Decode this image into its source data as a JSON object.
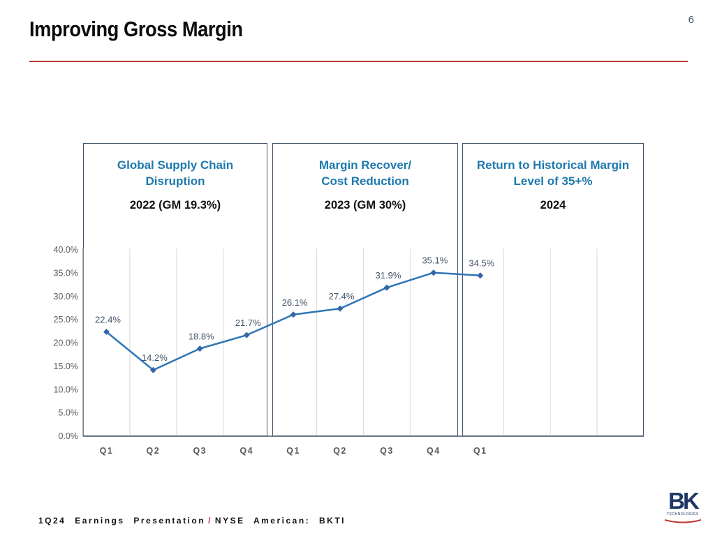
{
  "page": {
    "number": "6"
  },
  "header": {
    "title": "Improving Gross Margin",
    "rule_color": "#be3a34"
  },
  "panels": [
    {
      "heading_line1": "Global Supply Chain",
      "heading_line2": "Disruption",
      "subheading": "2022 (GM 19.3%)"
    },
    {
      "heading_line1": "Margin Recover/",
      "heading_line2": "Cost Reduction",
      "subheading": "2023 (GM 30%)"
    },
    {
      "heading_line1": "Return to Historical Margin",
      "heading_line2": "Level of 35+%",
      "subheading": "2024"
    }
  ],
  "chart_data": {
    "type": "line",
    "title": "Gross margin by quarter",
    "categories": [
      "Q1",
      "Q2",
      "Q3",
      "Q4",
      "Q1",
      "Q2",
      "Q3",
      "Q4",
      "Q1"
    ],
    "values": [
      22.4,
      14.2,
      18.8,
      21.7,
      26.1,
      27.4,
      31.9,
      35.1,
      34.5
    ],
    "data_labels": [
      "22.4%",
      "14.2%",
      "18.8%",
      "21.7%",
      "26.1%",
      "27.4%",
      "31.9%",
      "35.1%",
      "34.5%"
    ],
    "y_ticks": [
      "0.0%",
      "5.0%",
      "10.0%",
      "15.0%",
      "20.0%",
      "25.0%",
      "30.0%",
      "35.0%",
      "40.0%"
    ],
    "ylim": [
      0,
      40
    ],
    "total_category_slots": 12,
    "grid": true,
    "legend": "none",
    "line_color": "#2e75b6",
    "marker_color": "#3565a6",
    "label_color": "#44546a",
    "axis_text_color": "#595959",
    "gridline_color": "#d9d9d9",
    "axis_line_color": "#44546a"
  },
  "footer": {
    "left_text": "1Q24 Earnings Presentation",
    "slash": "/",
    "right_text": "NYSE American: BKTI",
    "slash_color": "#be3a34"
  },
  "logo": {
    "text": "BK",
    "subtext": "TECHNOLOGIES",
    "color": "#1f3864",
    "swoosh_color": "#be3a34"
  }
}
